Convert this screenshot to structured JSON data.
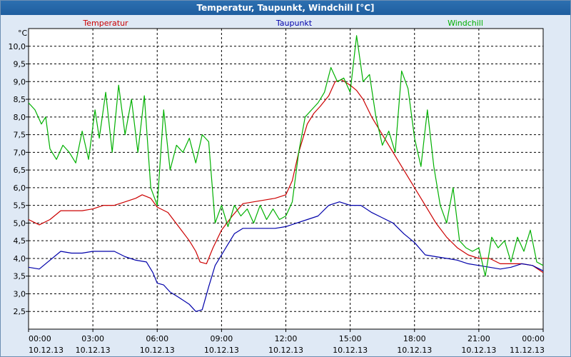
{
  "window": {
    "title": "Temperatur, Taupunkt, Windchill [°C]"
  },
  "chart_data": {
    "type": "line",
    "title": "Temperatur, Taupunkt, Windchill [°C]",
    "ylabel": "°C",
    "ylim": [
      2.0,
      10.5
    ],
    "y_ticks": [
      "2,5",
      "3,0",
      "3,5",
      "4,0",
      "4,5",
      "5,0",
      "5,5",
      "6,0",
      "6,5",
      "7,0",
      "7,5",
      "8,0",
      "8,5",
      "9,0",
      "9,5",
      "10,0"
    ],
    "y_tick_values": [
      2.5,
      3.0,
      3.5,
      4.0,
      4.5,
      5.0,
      5.5,
      6.0,
      6.5,
      7.0,
      7.5,
      8.0,
      8.5,
      9.0,
      9.5,
      10.0
    ],
    "xlim": [
      0,
      24
    ],
    "x_ticks": [
      {
        "time": "00:00",
        "date": "10.12.13"
      },
      {
        "time": "03:00",
        "date": "10.12.13"
      },
      {
        "time": "06:00",
        "date": "10.12.13"
      },
      {
        "time": "09:00",
        "date": "10.12.13"
      },
      {
        "time": "12:00",
        "date": "10.12.13"
      },
      {
        "time": "15:00",
        "date": "10.12.13"
      },
      {
        "time": "18:00",
        "date": "10.12.13"
      },
      {
        "time": "21:00",
        "date": "10.12.13"
      },
      {
        "time": "00:00",
        "date": "11.12.13"
      }
    ],
    "x_tick_values": [
      0,
      3,
      6,
      9,
      12,
      15,
      18,
      21,
      24
    ],
    "grid": true,
    "legend_position": "top",
    "series": [
      {
        "name": "Temperatur",
        "color": "#cc0000",
        "x": [
          0,
          0.5,
          1,
          1.5,
          2,
          2.5,
          3,
          3.5,
          4,
          4.5,
          5,
          5.3,
          5.7,
          6,
          6.5,
          7,
          7.5,
          7.8,
          8,
          8.3,
          8.6,
          9,
          9.5,
          10,
          10.5,
          11,
          11.5,
          12,
          12.3,
          12.6,
          13,
          13.3,
          13.6,
          14,
          14.3,
          14.6,
          15,
          15.3,
          15.6,
          16,
          16.5,
          17,
          17.5,
          18,
          18.5,
          19,
          19.5,
          20,
          20.5,
          21,
          21.5,
          22,
          22.5,
          23,
          23.5,
          24
        ],
        "values": [
          5.1,
          4.95,
          5.1,
          5.35,
          5.35,
          5.35,
          5.4,
          5.5,
          5.5,
          5.6,
          5.7,
          5.8,
          5.7,
          5.45,
          5.3,
          4.9,
          4.5,
          4.2,
          3.9,
          3.85,
          4.3,
          4.8,
          5.2,
          5.55,
          5.6,
          5.65,
          5.7,
          5.8,
          6.2,
          7.0,
          7.8,
          8.1,
          8.3,
          8.6,
          9.0,
          9.05,
          8.9,
          8.75,
          8.5,
          8.0,
          7.5,
          7.0,
          6.5,
          6.0,
          5.5,
          5.0,
          4.6,
          4.3,
          4.1,
          4.0,
          4.0,
          3.85,
          3.85,
          3.85,
          3.8,
          3.6
        ]
      },
      {
        "name": "Taupunkt",
        "color": "#0000aa",
        "x": [
          0,
          0.5,
          1,
          1.5,
          2,
          2.5,
          3,
          3.5,
          4,
          4.5,
          5,
          5.5,
          5.8,
          6,
          6.3,
          6.6,
          7,
          7.5,
          7.8,
          8.1,
          8.4,
          8.7,
          9,
          9.3,
          9.6,
          10,
          10.5,
          11,
          11.5,
          12,
          12.5,
          13,
          13.5,
          14,
          14.5,
          15,
          15.5,
          16,
          16.5,
          17,
          17.5,
          18,
          18.5,
          19,
          19.5,
          20,
          20.5,
          21,
          21.5,
          22,
          22.5,
          23,
          23.5,
          24
        ],
        "values": [
          3.75,
          3.7,
          3.95,
          4.2,
          4.15,
          4.15,
          4.2,
          4.2,
          4.2,
          4.05,
          3.95,
          3.9,
          3.6,
          3.3,
          3.25,
          3.05,
          2.9,
          2.7,
          2.5,
          2.55,
          3.2,
          3.8,
          4.1,
          4.4,
          4.7,
          4.85,
          4.85,
          4.85,
          4.85,
          4.9,
          5.0,
          5.1,
          5.2,
          5.5,
          5.6,
          5.5,
          5.5,
          5.3,
          5.15,
          5.0,
          4.7,
          4.45,
          4.1,
          4.05,
          4.0,
          3.95,
          3.85,
          3.8,
          3.75,
          3.7,
          3.75,
          3.85,
          3.8,
          3.65
        ]
      },
      {
        "name": "Windchill",
        "color": "#00b000",
        "x": [
          0,
          0.3,
          0.6,
          0.8,
          1,
          1.3,
          1.6,
          1.9,
          2.2,
          2.5,
          2.8,
          3.1,
          3.3,
          3.6,
          3.9,
          4.2,
          4.5,
          4.8,
          5.1,
          5.4,
          5.7,
          6,
          6.3,
          6.6,
          6.9,
          7.2,
          7.5,
          7.8,
          8.1,
          8.4,
          8.7,
          9,
          9.3,
          9.6,
          9.9,
          10.2,
          10.5,
          10.8,
          11.1,
          11.4,
          11.7,
          12,
          12.3,
          12.6,
          12.9,
          13.2,
          13.5,
          13.8,
          14.1,
          14.4,
          14.7,
          15,
          15.3,
          15.6,
          15.9,
          16.2,
          16.5,
          16.8,
          17.1,
          17.4,
          17.7,
          18,
          18.3,
          18.6,
          18.9,
          19.2,
          19.5,
          19.8,
          20.1,
          20.4,
          20.7,
          21,
          21.3,
          21.6,
          21.9,
          22.2,
          22.5,
          22.8,
          23.1,
          23.4,
          23.7,
          24
        ],
        "values": [
          8.4,
          8.2,
          7.8,
          8.0,
          7.1,
          6.8,
          7.2,
          7.0,
          6.7,
          7.6,
          6.8,
          8.2,
          7.4,
          8.7,
          7.0,
          8.9,
          7.5,
          8.5,
          7.0,
          8.6,
          6.0,
          5.5,
          8.2,
          6.5,
          7.2,
          7.0,
          7.4,
          6.7,
          7.5,
          7.3,
          5.0,
          5.5,
          4.9,
          5.5,
          5.2,
          5.4,
          5.0,
          5.5,
          5.1,
          5.4,
          5.1,
          5.2,
          5.6,
          7.0,
          8.0,
          8.2,
          8.4,
          8.7,
          9.4,
          9.0,
          9.1,
          8.7,
          10.3,
          9.0,
          9.2,
          8.0,
          7.2,
          7.6,
          7.0,
          9.3,
          8.8,
          7.4,
          6.6,
          8.2,
          6.6,
          5.5,
          5.0,
          6.0,
          4.5,
          4.3,
          4.2,
          4.3,
          3.5,
          4.6,
          4.3,
          4.5,
          3.9,
          4.6,
          4.2,
          4.8,
          3.9,
          3.8
        ]
      }
    ]
  }
}
